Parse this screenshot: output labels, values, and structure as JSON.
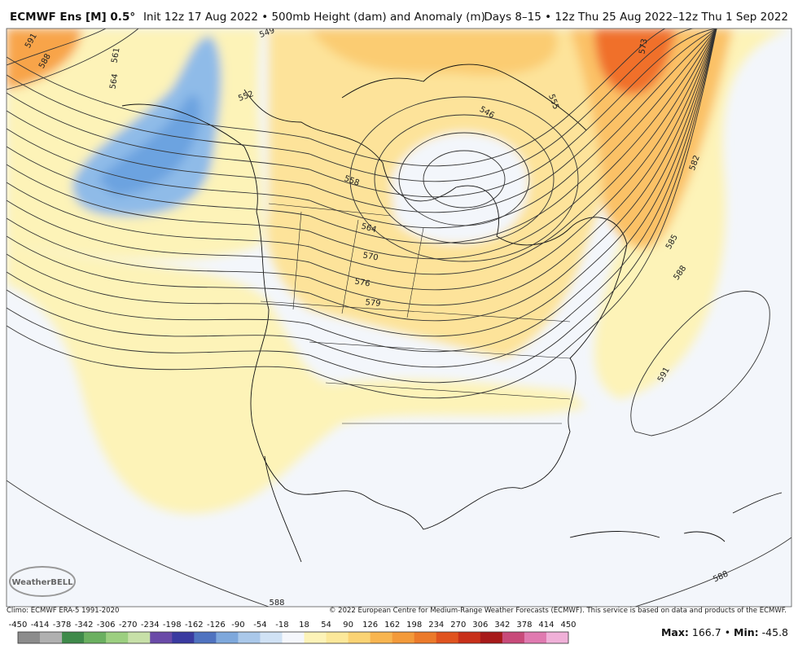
{
  "header": {
    "model": "ECMWF Ens [M] 0.5°",
    "init": "Init 12z 17 Aug 2022 • 500mb Height (dam) and Anomaly (m)",
    "days": "Days 8–15 • 12z Thu 25 Aug 2022–12z Thu 1 Sep 2022"
  },
  "map": {
    "contour_labels": [
      591,
      588,
      561,
      564,
      549,
      552,
      558,
      564,
      570,
      576,
      579,
      546,
      555,
      573,
      582,
      585,
      588,
      591,
      588,
      588
    ]
  },
  "logo": "WeatherBELL",
  "footer": {
    "climo": "Climo: ECMWF ERA-5 1991-2020",
    "copyright": "© 2022 European Centre for Medium-Range Weather Forecasts (ECMWF). This service is based on data and products of the ECMWF."
  },
  "colorbar": {
    "labels": [
      -450,
      -414,
      -378,
      -342,
      -306,
      -270,
      -234,
      -198,
      -162,
      -126,
      -90,
      -54,
      -18,
      18,
      54,
      90,
      126,
      162,
      198,
      234,
      270,
      306,
      342,
      378,
      414,
      450
    ],
    "colors": [
      "#8c8c8c",
      "#b0b0b0",
      "#3f8a4a",
      "#6bb060",
      "#9ccf80",
      "#c7e0a8",
      "#6a4aa8",
      "#3a3aa0",
      "#4f73c0",
      "#7ea8dc",
      "#aac8ea",
      "#d0e2f5",
      "#f5f7fc",
      "#fdf3b8",
      "#fce89a",
      "#fbd374",
      "#f8b550",
      "#f39a3a",
      "#ec7a2a",
      "#e0531f",
      "#c8301a",
      "#a71a1a",
      "#c84a7a",
      "#e07ab0",
      "#f0b0d8"
    ]
  },
  "stats": {
    "max_label": "Max:",
    "max": 166.7,
    "separator": "•",
    "min_label": "Min:",
    "min": -45.8
  }
}
